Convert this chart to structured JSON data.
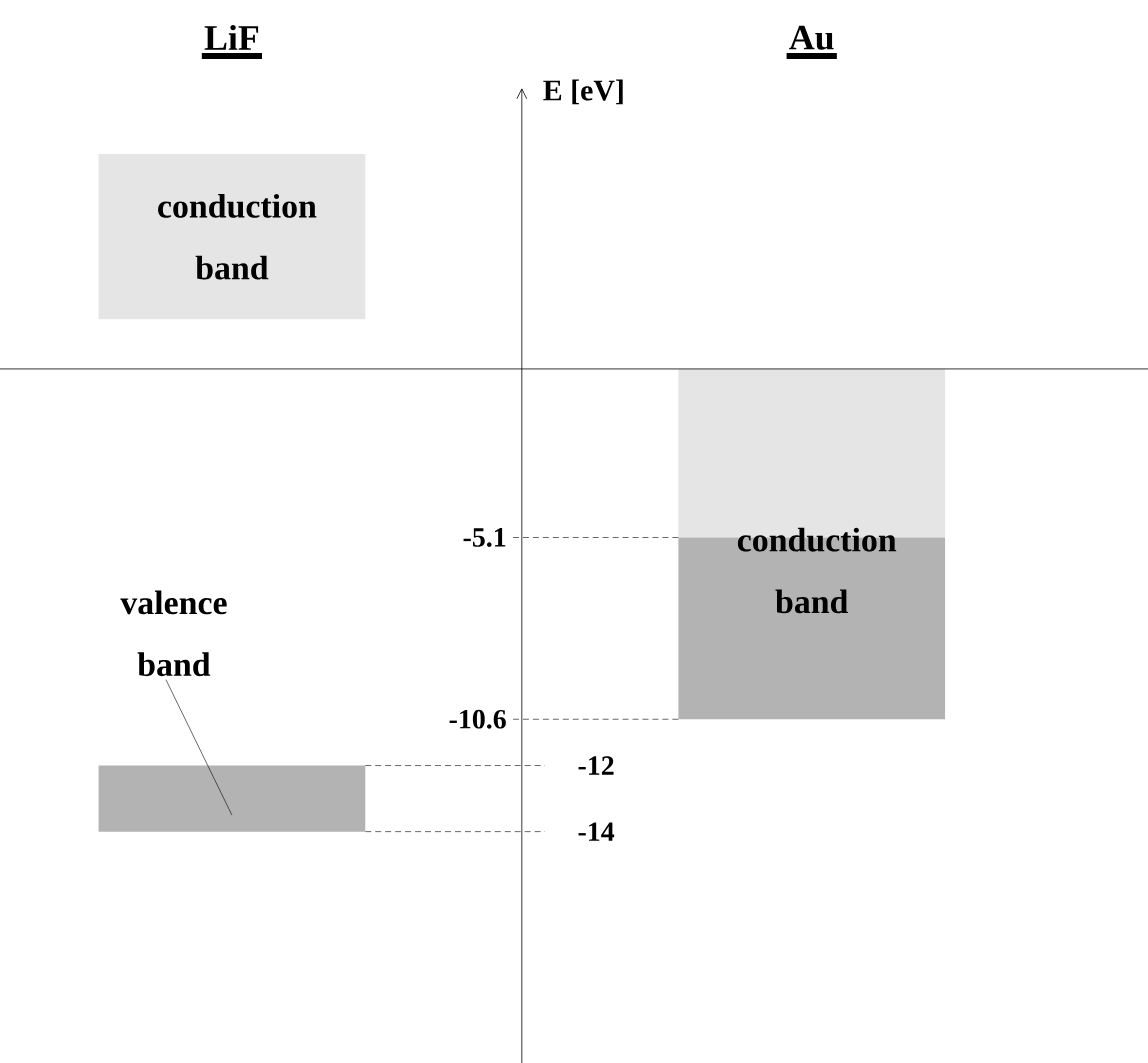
{
  "chart_data": {
    "type": "bar",
    "categories": [
      "LiF",
      "Au"
    ],
    "ylabel": "E [eV]",
    "ylim": [
      -21,
      8.5
    ],
    "series": [
      {
        "color": "#e5e5e5",
        "values": [
          5.0,
          5.1
        ],
        "base": [
          1.5,
          -5.1
        ]
      },
      {
        "color": "#b3b3b3",
        "values": [
          2,
          5.5
        ],
        "base": [
          -14,
          -10.6
        ]
      }
    ],
    "ref_lines": [
      {
        "axis": "y",
        "value": -5.1,
        "label": "-5.1",
        "line_style": "dashed"
      },
      {
        "axis": "y",
        "value": -10.6,
        "label": "-10.6",
        "line_style": "dashed"
      },
      {
        "axis": "y",
        "value": -12,
        "label": "-12",
        "line_style": "dashed"
      },
      {
        "axis": "y",
        "value": -14,
        "label": "-14",
        "line_style": "dashed"
      }
    ],
    "annotations": [
      "conduction band",
      "conduction band",
      "valence band"
    ]
  }
}
